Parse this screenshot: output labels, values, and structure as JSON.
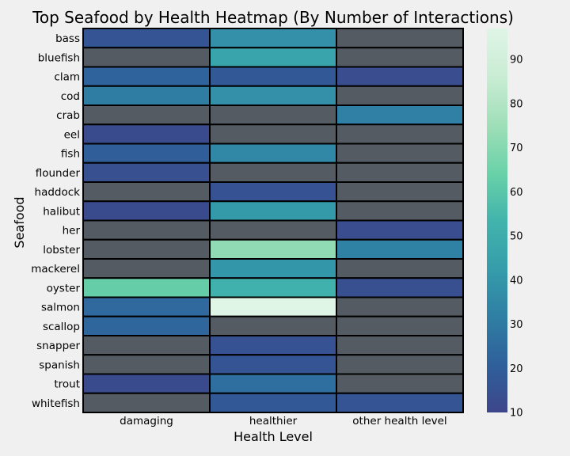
{
  "chart_data": {
    "type": "heatmap",
    "title": "Top Seafood by Health Heatmap (By Number of Interactions)",
    "xlabel": "Health Level",
    "ylabel": "Seafood",
    "columns": [
      "damaging",
      "healthier",
      "other health level"
    ],
    "rows": [
      "bass",
      "bluefish",
      "clam",
      "cod",
      "crab",
      "eel",
      "fish",
      "flounder",
      "haddock",
      "halibut",
      "her",
      "lobster",
      "mackerel",
      "oyster",
      "salmon",
      "scallop",
      "snapper",
      "spanish",
      "trout",
      "whitefish"
    ],
    "values": [
      [
        16,
        38,
        null
      ],
      [
        null,
        46,
        null
      ],
      [
        22,
        18,
        13
      ],
      [
        31,
        38,
        null
      ],
      [
        null,
        null,
        32
      ],
      [
        12,
        null,
        null
      ],
      [
        20,
        35,
        null
      ],
      [
        14,
        null,
        null
      ],
      [
        null,
        15,
        null
      ],
      [
        12,
        41,
        null
      ],
      [
        null,
        null,
        13
      ],
      [
        null,
        72,
        33
      ],
      [
        null,
        40,
        null
      ],
      [
        63,
        52,
        14
      ],
      [
        24,
        97,
        null
      ],
      [
        23,
        null,
        null
      ],
      [
        null,
        15,
        null
      ],
      [
        null,
        16,
        null
      ],
      [
        12,
        26,
        null
      ],
      [
        null,
        18,
        16
      ]
    ],
    "missing_color": "#545b62",
    "colormap": "mako",
    "colorbar": {
      "range": [
        10,
        97
      ],
      "ticks": [
        10,
        20,
        30,
        40,
        50,
        60,
        70,
        80,
        90
      ]
    },
    "grid": false,
    "legend": "colorbar-right"
  }
}
